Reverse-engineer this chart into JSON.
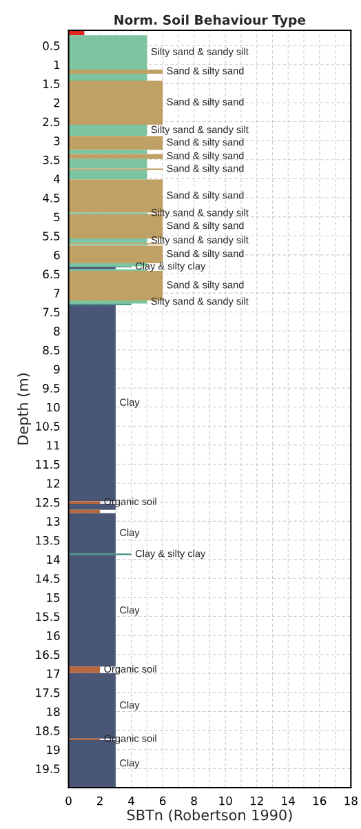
{
  "chart_data": {
    "type": "histogram",
    "orientation": "horizontal",
    "title": "Norm. Soil Behaviour Type",
    "xlabel": "SBTn (Robertson 1990)",
    "ylabel": "Depth (m)",
    "bins": [
      0.1,
      0.23,
      1.13,
      1.24,
      1.42,
      2.58,
      2.88,
      3.24,
      3.35,
      3.48,
      3.73,
      3.77,
      4.02,
      4.89,
      4.93,
      5.57,
      5.69,
      5.72,
      5.76,
      6.22,
      6.3,
      6.33,
      6.38,
      6.42,
      7.2,
      7.28,
      7.32,
      12.47,
      12.54,
      12.7,
      12.79,
      13.85,
      13.89,
      16.82,
      16.99,
      18.71,
      18.75,
      20.0
    ],
    "values": [
      1,
      5,
      6,
      5,
      6,
      5,
      6,
      5,
      6,
      5,
      6,
      5,
      6,
      5,
      6,
      5,
      6,
      5,
      6,
      5,
      4,
      3,
      5,
      6,
      5,
      4,
      3,
      2,
      3,
      2,
      3,
      4,
      3,
      2,
      3,
      2,
      3
    ],
    "value_labels": [
      null,
      "Silty sand & sandy silt",
      "Sand & silty sand",
      null,
      "Sand & silty sand",
      "Silty sand & sandy silt",
      "Sand & silty sand",
      null,
      "Sand & silty sand",
      null,
      "Sand & silty sand",
      null,
      "Sand & silty sand",
      "Silty sand & sandy silt",
      "Sand & silty sand",
      "Silty sand & sandy silt",
      null,
      null,
      "Sand & silty sand",
      null,
      "Clay & silty clay",
      null,
      null,
      "Sand & silty sand",
      "Silty sand & sandy silt",
      null,
      "Clay",
      "Organic soil",
      null,
      null,
      "Clay",
      "Clay & silty clay",
      "Clay",
      "Organic soil",
      "Clay",
      "Organic soil",
      "Clay"
    ],
    "colors": [
      "#e0261f",
      "#7dc5a0",
      "#bfa065",
      "#7dc5a0",
      "#bfa065",
      "#7dc5a0",
      "#bfa065",
      "#7dc5a0",
      "#bfa065",
      "#7dc5a0",
      "#bfa065",
      "#7dc5a0",
      "#bfa065",
      "#7dc5a0",
      "#bfa065",
      "#7dc5a0",
      "#bfa065",
      "#7dc5a0",
      "#bfa065",
      "#7dc5a0",
      "#3f8f80",
      "#4a5675",
      "#7dc5a0",
      "#bfa065",
      "#7dc5a0",
      "#3f8f80",
      "#4a5675",
      "#b9683f",
      "#4a5675",
      "#b9683f",
      "#4a5675",
      "#3f8f80",
      "#4a5675",
      "#b9683f",
      "#4a5675",
      "#b9683f",
      "#4a5675"
    ],
    "xlim": [
      0,
      18
    ],
    "xticks": [
      0,
      {
        "value": 1,
        "label": null
      },
      2,
      {
        "value": 3,
        "label": null
      },
      4,
      {
        "value": 5,
        "label": null
      },
      6,
      {
        "value": 7,
        "label": null
      },
      8,
      {
        "value": 9,
        "label": null
      },
      10,
      {
        "value": 11,
        "label": null
      },
      12,
      {
        "value": 13,
        "label": null
      },
      14,
      {
        "value": 15,
        "label": null
      },
      16,
      {
        "value": 17,
        "label": null
      },
      18
    ],
    "ylim": [
      20.0,
      0.1
    ],
    "yticks": [
      0.5,
      1,
      1.5,
      2,
      2.5,
      3,
      3.5,
      4,
      4.5,
      5,
      5.5,
      6,
      6.5,
      7,
      7.5,
      8,
      8.5,
      9,
      9.5,
      10,
      10.5,
      11,
      11.5,
      12,
      12.5,
      13,
      13.5,
      14,
      14.5,
      15,
      15.5,
      16,
      16.5,
      17,
      17.5,
      18,
      18.5,
      19,
      19.5
    ],
    "grid": true
  }
}
